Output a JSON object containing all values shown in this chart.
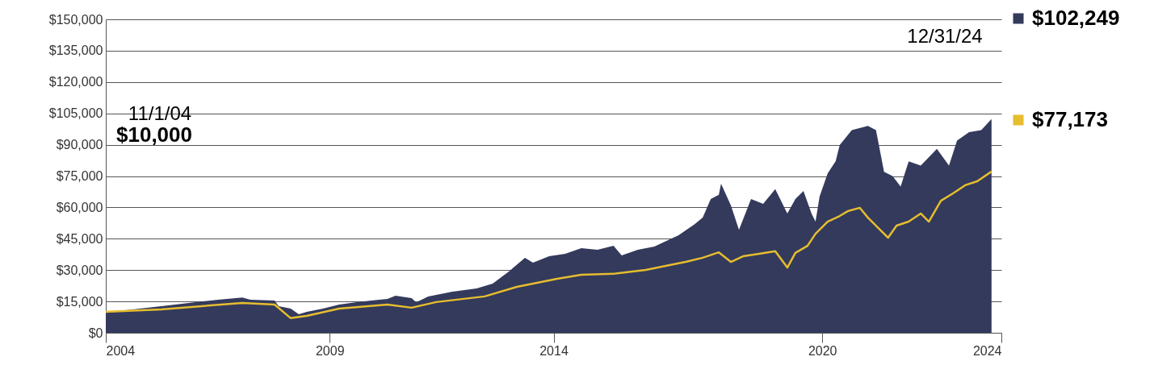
{
  "chart_data": {
    "type": "area",
    "series": [
      {
        "name": "$102,249",
        "color": "#333a5c",
        "x": [
          2004.0,
          2004.52,
          2005.24,
          2005.97,
          2006.51,
          2007.05,
          2007.23,
          2007.77,
          2007.86,
          2008.13,
          2008.31,
          2008.49,
          2008.85,
          2009.21,
          2009.57,
          2009.93,
          2010.29,
          2010.47,
          2010.83,
          2010.93,
          2011.2,
          2011.74,
          2012.28,
          2012.64,
          2013.0,
          2013.36,
          2013.54,
          2013.9,
          2014.26,
          2014.62,
          2014.98,
          2015.34,
          2015.52,
          2015.88,
          2016.25,
          2016.79,
          2017.15,
          2017.33,
          2017.51,
          2017.69,
          2017.74,
          2017.96,
          2018.14,
          2018.41,
          2018.68,
          2018.95,
          2019.22,
          2019.4,
          2019.58,
          2019.76,
          2019.85,
          2019.94,
          2020.12,
          2020.3,
          2020.39,
          2020.66,
          2021.02,
          2021.2,
          2021.38,
          2021.57,
          2021.75,
          2021.93,
          2022.2,
          2022.56,
          2022.83,
          2023.01,
          2023.28,
          2023.55,
          2023.78
        ],
        "values": [
          10000,
          11000,
          12700,
          14600,
          15800,
          16900,
          15800,
          15400,
          12700,
          11600,
          8900,
          10000,
          11600,
          13500,
          14600,
          15400,
          16200,
          17700,
          16600,
          14600,
          17400,
          19700,
          21200,
          23500,
          29300,
          35900,
          33500,
          36600,
          37800,
          40500,
          39700,
          41600,
          37000,
          39700,
          41300,
          46700,
          52000,
          55100,
          64000,
          66000,
          71300,
          60900,
          49300,
          64000,
          61700,
          68700,
          57100,
          64000,
          67900,
          57100,
          53200,
          65200,
          76300,
          82100,
          89800,
          97000,
          99000,
          97000,
          77000,
          75000,
          70000,
          82000,
          80000,
          88000,
          80000,
          92000,
          96000,
          97000,
          102249
        ]
      },
      {
        "type": "line",
        "name": "$77,173",
        "color": "#e6bd2e",
        "x": [
          2004.0,
          2005.24,
          2007.05,
          2007.77,
          2008.13,
          2008.49,
          2009.21,
          2010.29,
          2010.83,
          2011.38,
          2012.46,
          2013.18,
          2014.08,
          2014.62,
          2015.34,
          2016.06,
          2016.97,
          2017.33,
          2017.69,
          2017.96,
          2018.23,
          2018.59,
          2018.95,
          2019.22,
          2019.4,
          2019.67,
          2019.85,
          2020.12,
          2020.39,
          2020.57,
          2020.84,
          2021.02,
          2021.29,
          2021.47,
          2021.66,
          2021.93,
          2022.2,
          2022.38,
          2022.65,
          2022.92,
          2023.19,
          2023.46,
          2023.78
        ],
        "values": [
          10000,
          11200,
          14300,
          13500,
          7000,
          8100,
          11600,
          13500,
          12000,
          14700,
          17400,
          22000,
          25800,
          27800,
          28200,
          30100,
          34000,
          35900,
          38500,
          33900,
          36600,
          37800,
          39000,
          31200,
          38200,
          41600,
          47400,
          53200,
          55900,
          58200,
          59800,
          55100,
          49300,
          45500,
          51300,
          53200,
          57100,
          53200,
          63200,
          66700,
          70600,
          72500,
          77173
        ]
      }
    ],
    "xlim": [
      2004,
      2024
    ],
    "xticks": [
      2004,
      2009,
      2014,
      2020,
      2024
    ],
    "ylim": [
      0,
      150000
    ],
    "yticks": [
      {
        "value": 0,
        "label": "$0"
      },
      {
        "value": 15000,
        "label": "$15,000"
      },
      {
        "value": 30000,
        "label": "$30,000"
      },
      {
        "value": 45000,
        "label": "$45,000"
      },
      {
        "value": 60000,
        "label": "$60,000"
      },
      {
        "value": 75000,
        "label": "$75,000"
      },
      {
        "value": 90000,
        "label": "$90,000"
      },
      {
        "value": 105000,
        "label": "$105,000"
      },
      {
        "value": 120000,
        "label": "$120,000"
      },
      {
        "value": 135000,
        "label": "$135,000"
      },
      {
        "value": 150000,
        "label": "$150,000"
      }
    ],
    "grid": "y",
    "legend": "right",
    "annotations": [
      "11/1/04",
      "$10,000",
      "12/31/24"
    ]
  }
}
